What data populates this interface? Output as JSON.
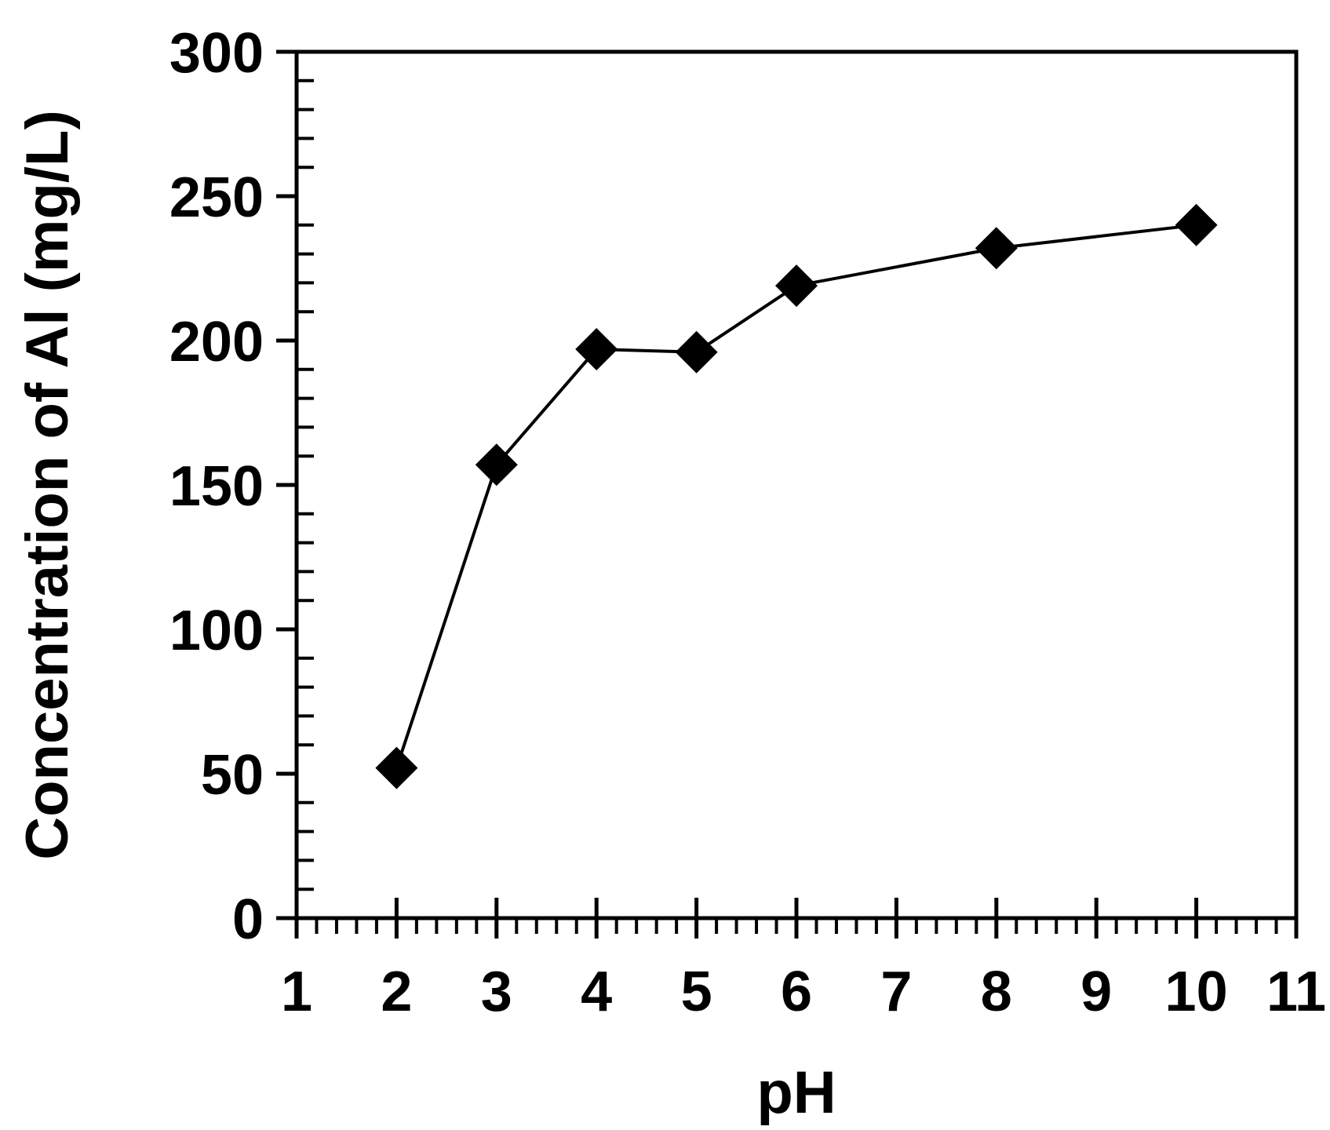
{
  "chart_data": {
    "type": "line",
    "title": "",
    "xlabel": "pH",
    "ylabel": "Concentration of Al (mg/L)",
    "xlim": [
      1,
      11
    ],
    "ylim": [
      0,
      300
    ],
    "x_ticks": [
      "1",
      "2",
      "3",
      "4",
      "5",
      "6",
      "7",
      "8",
      "9",
      "10",
      "11"
    ],
    "y_ticks": [
      "0",
      "50",
      "100",
      "150",
      "200",
      "250",
      "300"
    ],
    "grid": false,
    "legend": "none",
    "marker": "diamond",
    "color": "#000000",
    "series": [
      {
        "x": [
          2,
          3,
          4,
          5,
          6,
          8,
          10
        ],
        "y": [
          52,
          157,
          197,
          196,
          219,
          232,
          240
        ]
      }
    ]
  }
}
